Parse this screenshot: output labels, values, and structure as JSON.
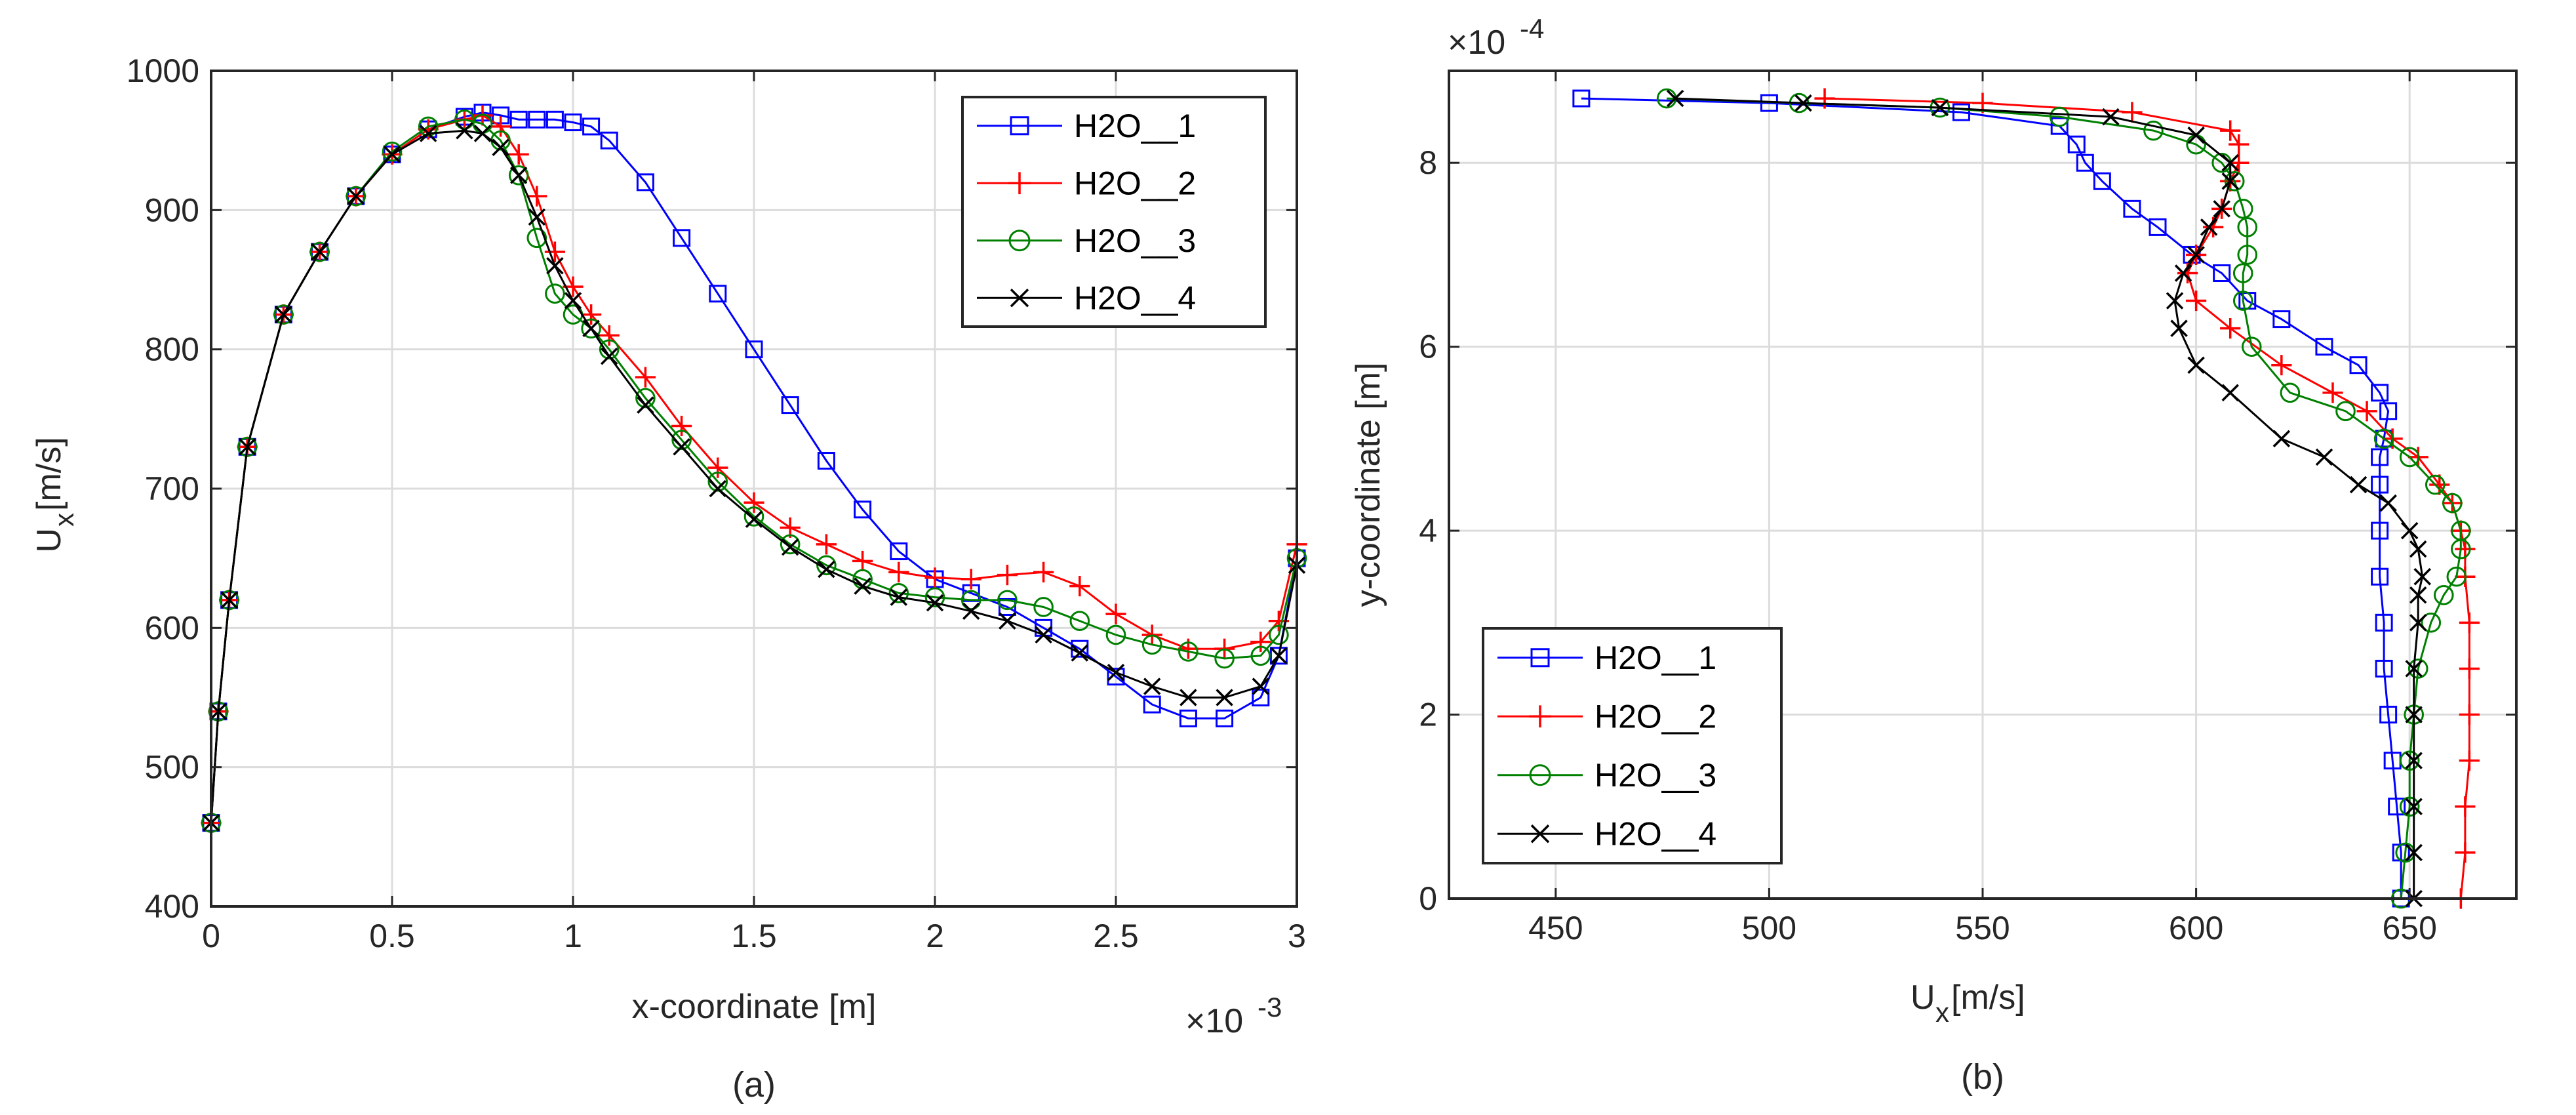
{
  "chart_data": [
    {
      "type": "line",
      "caption": "(a)",
      "xlabel": "x-coordinate [m]",
      "ylabel": "U",
      "ylabel_sub": "x",
      "ylabel_unit": " [m/s]",
      "x_multiplier": "×10",
      "x_multiplier_exp": "-3",
      "xlim": [
        0,
        3
      ],
      "ylim": [
        400,
        1000
      ],
      "xticks": [
        0,
        0.5,
        1,
        1.5,
        2,
        2.5,
        3
      ],
      "xtick_labels": [
        "0",
        "0.5",
        "1",
        "1.5",
        "2",
        "2.5",
        "3"
      ],
      "yticks": [
        400,
        500,
        600,
        700,
        800,
        900,
        1000
      ],
      "ytick_labels": [
        "400",
        "500",
        "600",
        "700",
        "800",
        "900",
        "1000"
      ],
      "grid": true,
      "legend_position": "top-right",
      "series": [
        {
          "name": "H2O__1",
          "color": "#0000ff",
          "marker": "square",
          "x": [
            0,
            0.02,
            0.05,
            0.1,
            0.2,
            0.3,
            0.4,
            0.5,
            0.6,
            0.7,
            0.75,
            0.8,
            0.85,
            0.9,
            0.95,
            1.0,
            1.05,
            1.1,
            1.2,
            1.3,
            1.4,
            1.5,
            1.6,
            1.7,
            1.8,
            1.9,
            2.0,
            2.1,
            2.2,
            2.3,
            2.4,
            2.5,
            2.6,
            2.7,
            2.8,
            2.9,
            2.95,
            3.0
          ],
          "y": [
            460,
            540,
            620,
            730,
            825,
            870,
            910,
            940,
            958,
            967,
            970,
            968,
            965,
            965,
            965,
            963,
            960,
            950,
            920,
            880,
            840,
            800,
            760,
            720,
            685,
            655,
            635,
            625,
            615,
            600,
            585,
            565,
            545,
            535,
            535,
            550,
            580,
            650
          ]
        },
        {
          "name": "H2O__2",
          "color": "#ff0000",
          "marker": "plus",
          "x": [
            0,
            0.02,
            0.05,
            0.1,
            0.2,
            0.3,
            0.4,
            0.5,
            0.6,
            0.7,
            0.75,
            0.8,
            0.85,
            0.9,
            0.95,
            1.0,
            1.05,
            1.1,
            1.2,
            1.3,
            1.4,
            1.5,
            1.6,
            1.7,
            1.8,
            1.9,
            2.0,
            2.1,
            2.2,
            2.3,
            2.4,
            2.5,
            2.6,
            2.7,
            2.8,
            2.9,
            2.95,
            3.0
          ],
          "y": [
            460,
            540,
            620,
            730,
            825,
            870,
            910,
            940,
            958,
            965,
            968,
            960,
            940,
            910,
            870,
            845,
            825,
            810,
            780,
            745,
            715,
            690,
            672,
            660,
            648,
            640,
            636,
            635,
            638,
            640,
            630,
            610,
            595,
            585,
            585,
            590,
            605,
            660
          ]
        },
        {
          "name": "H2O__3",
          "color": "#008000",
          "marker": "circle",
          "x": [
            0,
            0.02,
            0.05,
            0.1,
            0.2,
            0.3,
            0.4,
            0.5,
            0.6,
            0.7,
            0.75,
            0.8,
            0.85,
            0.9,
            0.95,
            1.0,
            1.05,
            1.1,
            1.2,
            1.3,
            1.4,
            1.5,
            1.6,
            1.7,
            1.8,
            1.9,
            2.0,
            2.1,
            2.2,
            2.3,
            2.4,
            2.5,
            2.6,
            2.7,
            2.8,
            2.9,
            2.95,
            3.0
          ],
          "y": [
            460,
            540,
            620,
            730,
            825,
            870,
            910,
            942,
            960,
            965,
            962,
            950,
            925,
            880,
            840,
            825,
            815,
            800,
            765,
            735,
            705,
            680,
            660,
            645,
            635,
            625,
            622,
            620,
            620,
            615,
            605,
            595,
            588,
            583,
            578,
            580,
            595,
            650
          ]
        },
        {
          "name": "H2O__4",
          "color": "#000000",
          "marker": "x",
          "x": [
            0,
            0.02,
            0.05,
            0.1,
            0.2,
            0.3,
            0.4,
            0.5,
            0.6,
            0.7,
            0.75,
            0.8,
            0.85,
            0.9,
            0.95,
            1.0,
            1.05,
            1.1,
            1.2,
            1.3,
            1.4,
            1.5,
            1.6,
            1.7,
            1.8,
            1.9,
            2.0,
            2.1,
            2.2,
            2.3,
            2.4,
            2.5,
            2.6,
            2.7,
            2.8,
            2.9,
            2.95,
            3.0
          ],
          "y": [
            460,
            540,
            620,
            730,
            825,
            870,
            910,
            940,
            955,
            957,
            955,
            945,
            925,
            895,
            860,
            835,
            815,
            795,
            760,
            730,
            700,
            678,
            658,
            642,
            630,
            622,
            618,
            612,
            605,
            595,
            582,
            568,
            558,
            550,
            550,
            558,
            580,
            645
          ]
        }
      ]
    },
    {
      "type": "line",
      "caption": "(b)",
      "xlabel": "U",
      "xlabel_sub": "x",
      "xlabel_unit": " [m/s]",
      "ylabel": "y-coordinate [m]",
      "y_multiplier": "×10",
      "y_multiplier_exp": "-4",
      "xlim": [
        425,
        675
      ],
      "ylim": [
        0,
        9
      ],
      "xticks": [
        450,
        500,
        550,
        600,
        650
      ],
      "xtick_labels": [
        "450",
        "500",
        "550",
        "600",
        "650"
      ],
      "yticks": [
        0,
        2,
        4,
        6,
        8
      ],
      "ytick_labels": [
        "0",
        "2",
        "4",
        "6",
        "8"
      ],
      "grid": true,
      "legend_position": "bottom-left",
      "series": [
        {
          "name": "H2O__1",
          "color": "#0000ff",
          "marker": "square",
          "x": [
            648,
            648,
            647,
            646,
            645,
            644,
            644,
            643,
            643,
            643,
            643,
            644,
            645,
            643,
            638,
            630,
            620,
            612,
            606,
            599,
            591,
            585,
            578,
            574,
            572,
            568,
            545,
            500,
            456
          ],
          "y": [
            0,
            0.5,
            1.0,
            1.5,
            2.0,
            2.5,
            3.0,
            3.5,
            4.0,
            4.5,
            4.8,
            5.0,
            5.3,
            5.5,
            5.8,
            6.0,
            6.3,
            6.5,
            6.8,
            7.0,
            7.3,
            7.5,
            7.8,
            8.0,
            8.2,
            8.4,
            8.55,
            8.65,
            8.7
          ]
        },
        {
          "name": "H2O__2",
          "color": "#ff0000",
          "marker": "plus",
          "x": [
            662,
            663,
            663,
            664,
            664,
            664,
            664,
            663,
            663,
            662,
            660,
            657,
            652,
            646,
            640,
            632,
            620,
            608,
            600,
            598,
            600,
            604,
            606,
            608,
            610,
            610,
            608,
            585,
            550,
            513
          ],
          "y": [
            0,
            0.5,
            1.0,
            1.5,
            2.0,
            2.5,
            3.0,
            3.5,
            3.8,
            4.0,
            4.3,
            4.5,
            4.8,
            5.0,
            5.3,
            5.5,
            5.8,
            6.2,
            6.5,
            6.8,
            7.0,
            7.3,
            7.5,
            7.8,
            8.0,
            8.2,
            8.35,
            8.55,
            8.65,
            8.7
          ]
        },
        {
          "name": "H2O__3",
          "color": "#008000",
          "marker": "circle",
          "x": [
            648,
            649,
            650,
            650,
            651,
            652,
            655,
            658,
            661,
            662,
            662,
            660,
            656,
            650,
            644,
            635,
            622,
            613,
            611,
            611,
            612,
            612,
            611,
            609,
            606,
            600,
            590,
            568,
            540,
            507,
            476
          ],
          "y": [
            0,
            0.5,
            1.0,
            1.5,
            2.0,
            2.5,
            3.0,
            3.3,
            3.5,
            3.8,
            4.0,
            4.3,
            4.5,
            4.8,
            5.0,
            5.3,
            5.5,
            6.0,
            6.5,
            6.8,
            7.0,
            7.3,
            7.5,
            7.8,
            8.0,
            8.2,
            8.35,
            8.5,
            8.6,
            8.65,
            8.7
          ]
        },
        {
          "name": "H2O__4",
          "color": "#000000",
          "marker": "x",
          "x": [
            651,
            651,
            651,
            651,
            651,
            651,
            652,
            652,
            653,
            652,
            650,
            645,
            638,
            630,
            620,
            608,
            600,
            596,
            595,
            597,
            600,
            603,
            606,
            608,
            608,
            600,
            580,
            540,
            508,
            478
          ],
          "y": [
            0,
            0.5,
            1.0,
            1.5,
            2.0,
            2.5,
            3.0,
            3.3,
            3.5,
            3.8,
            4.0,
            4.3,
            4.5,
            4.8,
            5.0,
            5.5,
            5.8,
            6.2,
            6.5,
            6.8,
            7.0,
            7.3,
            7.5,
            7.8,
            8.0,
            8.3,
            8.5,
            8.6,
            8.65,
            8.7
          ]
        }
      ]
    }
  ]
}
